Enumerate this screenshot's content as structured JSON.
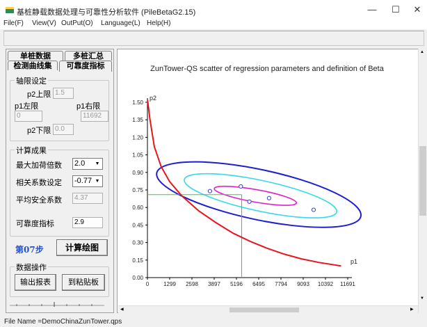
{
  "window": {
    "title": "基桩静载数据处理与可靠性分析软件 (PileBetaG2.15)",
    "minimize": "—",
    "maximize": "☐",
    "close": "✕"
  },
  "menu": [
    "File(F)",
    "View(V)",
    "OutPut(O)",
    "Language(L)",
    "Help(H)"
  ],
  "tabs": {
    "single": "单桩数据",
    "multi": "多桩汇总",
    "curve": "检测曲线集",
    "reliability": "可靠度指标"
  },
  "axis_limits": {
    "group_title": "轴限设定",
    "p2_upper_label": "p2上限",
    "p2_upper_value": "1.5",
    "p1_left_label": "p1左限",
    "p1_left_value": "0",
    "p1_right_label": "p1右限",
    "p1_right_value": "11692",
    "p2_lower_label": "p2下限",
    "p2_lower_value": "0.0"
  },
  "results": {
    "group_title": "计算成果",
    "max_load_label": "最大加荷倍数",
    "max_load_value": "2.0",
    "corr_label": "相关系数设定",
    "corr_value": "-0.77",
    "avg_safety_label": "平均安全系数",
    "avg_safety_value": "4.37",
    "reliability_label": "可靠度指标",
    "reliability_value": "2.9"
  },
  "step_label": "第07步",
  "compute_button": "计算绘图",
  "data_ops": {
    "group_title": "数据操作",
    "export_button": "输出报表",
    "clipboard_button": "到粘贴板"
  },
  "status": "File Name =DemoChinaZunTower.qps",
  "colors": {
    "curve": "#e8141e",
    "outer_ellipse": "#1e1ed2",
    "middle_ellipse": "#3ad8e8",
    "inner_ellipse": "#e020c8",
    "guide_lines": "#3ec83e",
    "points": "#3a3adc"
  },
  "chart_data": {
    "type": "scatter",
    "title": "ZunTower-QS scatter of regression parameters and definition of Beta",
    "xlabel": "p1",
    "ylabel": "p2",
    "xlim": [
      0,
      11691
    ],
    "ylim": [
      0,
      1.5
    ],
    "x_ticks": [
      "0",
      "1299",
      "2598",
      "3897",
      "5196",
      "6495",
      "7794",
      "9093",
      "10392",
      "11691"
    ],
    "y_ticks": [
      "0.00",
      "0.15",
      "0.30",
      "0.45",
      "0.60",
      "0.75",
      "0.90",
      "1.05",
      "1.20",
      "1.35",
      "1.50"
    ],
    "points": [
      {
        "x": 3650,
        "y": 0.74
      },
      {
        "x": 5450,
        "y": 0.78
      },
      {
        "x": 5950,
        "y": 0.65
      },
      {
        "x": 7100,
        "y": 0.68
      },
      {
        "x": 9700,
        "y": 0.58
      }
    ],
    "ellipses": [
      {
        "name": "outer",
        "cx": 6500,
        "cy": 0.71,
        "points": [
          [
            7700,
            0.78
          ],
          [
            12400,
            0.62
          ],
          [
            9000,
            0.49
          ],
          [
            1500,
            0.93
          ]
        ]
      },
      {
        "name": "middle",
        "cx": 6600,
        "cy": 0.7,
        "points": [
          [
            10000,
            0.56
          ],
          [
            3000,
            0.85
          ]
        ]
      },
      {
        "name": "inner",
        "cx": 6300,
        "cy": 0.7,
        "points": [
          [
            8200,
            0.63
          ],
          [
            4200,
            0.77
          ]
        ]
      }
    ],
    "boundary_curve": [
      [
        10,
        1.52
      ],
      [
        150,
        1.35
      ],
      [
        400,
        1.12
      ],
      [
        800,
        0.95
      ],
      [
        1300,
        0.82
      ],
      [
        2000,
        0.7
      ],
      [
        3000,
        0.57
      ],
      [
        4000,
        0.47
      ],
      [
        5000,
        0.38
      ],
      [
        6000,
        0.31
      ],
      [
        7000,
        0.25
      ],
      [
        8000,
        0.2
      ],
      [
        9000,
        0.16
      ],
      [
        10000,
        0.13
      ],
      [
        11300,
        0.1
      ]
    ],
    "beta_point": {
      "x": 5500,
      "y": 0.71
    }
  }
}
